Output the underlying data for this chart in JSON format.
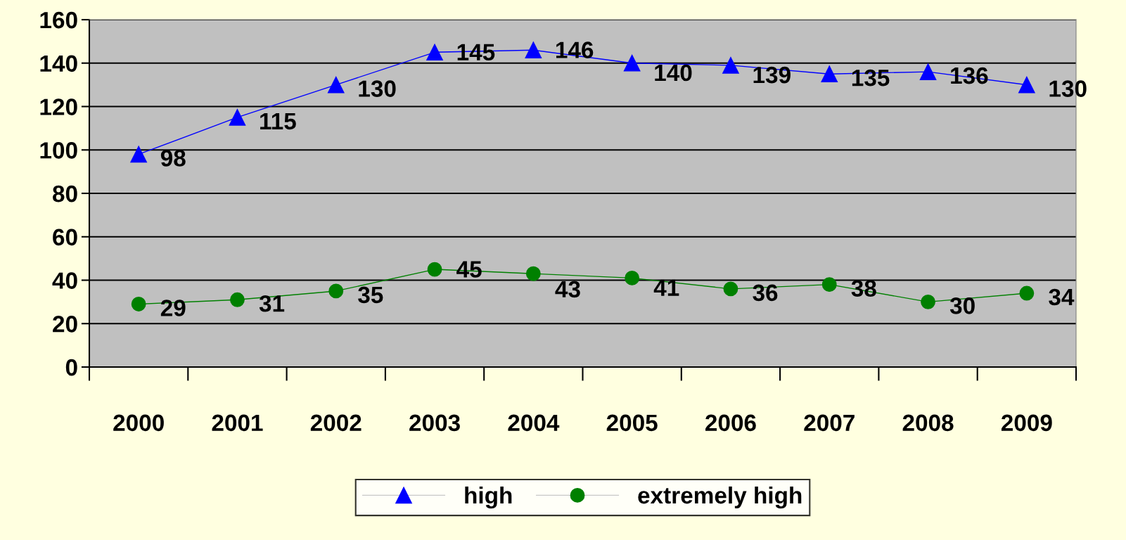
{
  "chart_data": {
    "type": "line",
    "categories": [
      "2000",
      "2001",
      "2002",
      "2003",
      "2004",
      "2005",
      "2006",
      "2007",
      "2008",
      "2009"
    ],
    "series": [
      {
        "name": "high",
        "color": "#0000ff",
        "marker": "triangle",
        "values": [
          98,
          115,
          130,
          145,
          146,
          140,
          139,
          135,
          136,
          130
        ]
      },
      {
        "name": "extremely high",
        "color": "#008000",
        "marker": "circle",
        "values": [
          29,
          31,
          35,
          45,
          43,
          41,
          36,
          38,
          30,
          34
        ]
      }
    ],
    "ylim": [
      0,
      160
    ],
    "yticks": [
      0,
      20,
      40,
      60,
      80,
      100,
      120,
      140,
      160
    ],
    "grid": "y",
    "legend": "bottom",
    "data_labels": true
  }
}
